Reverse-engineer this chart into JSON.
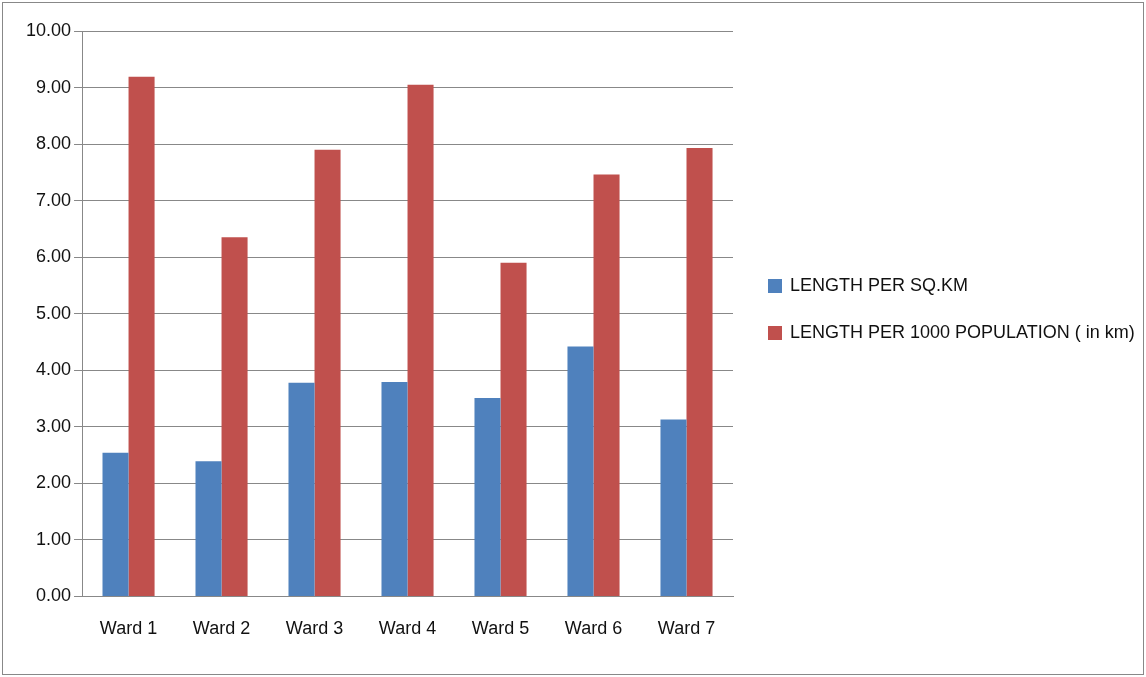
{
  "chart_data": {
    "type": "bar",
    "categories": [
      "Ward 1",
      "Ward 2",
      "Ward 3",
      "Ward 4",
      "Ward 5",
      "Ward 6",
      "Ward 7"
    ],
    "series": [
      {
        "name": "LENGTH PER SQ.KM",
        "color": "#4f81bd",
        "values": [
          2.54,
          2.39,
          3.78,
          3.79,
          3.51,
          4.42,
          3.13
        ]
      },
      {
        "name": "LENGTH PER 1000 POPULATION ( in km)",
        "color": "#c0504d",
        "values": [
          9.19,
          6.35,
          7.9,
          9.05,
          5.9,
          7.46,
          7.93
        ]
      }
    ],
    "ylim": [
      0,
      10
    ],
    "yticks": [
      {
        "value": 0,
        "label": "0.00"
      },
      {
        "value": 1,
        "label": "1.00"
      },
      {
        "value": 2,
        "label": "2.00"
      },
      {
        "value": 3,
        "label": "3.00"
      },
      {
        "value": 4,
        "label": "4.00"
      },
      {
        "value": 5,
        "label": "5.00"
      },
      {
        "value": 6,
        "label": "6.00"
      },
      {
        "value": 7,
        "label": "7.00"
      },
      {
        "value": 8,
        "label": "8.00"
      },
      {
        "value": 9,
        "label": "9.00"
      },
      {
        "value": 10,
        "label": "10.00"
      }
    ],
    "grid": "y",
    "legend": "right"
  }
}
